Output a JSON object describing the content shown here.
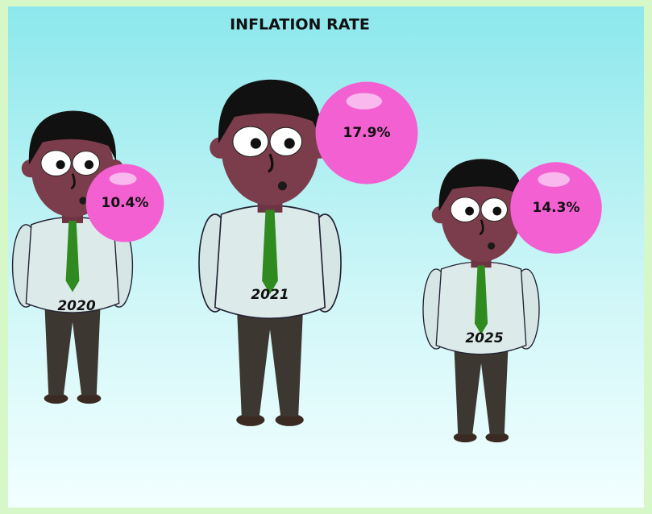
{
  "chart_data": {
    "type": "pictograph",
    "title": "INFLATION RATE",
    "categories": [
      "2020",
      "2021",
      "2025"
    ],
    "values": [
      10.4,
      17.9,
      14.3
    ],
    "value_labels": [
      "10.4%",
      "17.9%",
      "14.3%"
    ],
    "color": "#f360d2"
  }
}
